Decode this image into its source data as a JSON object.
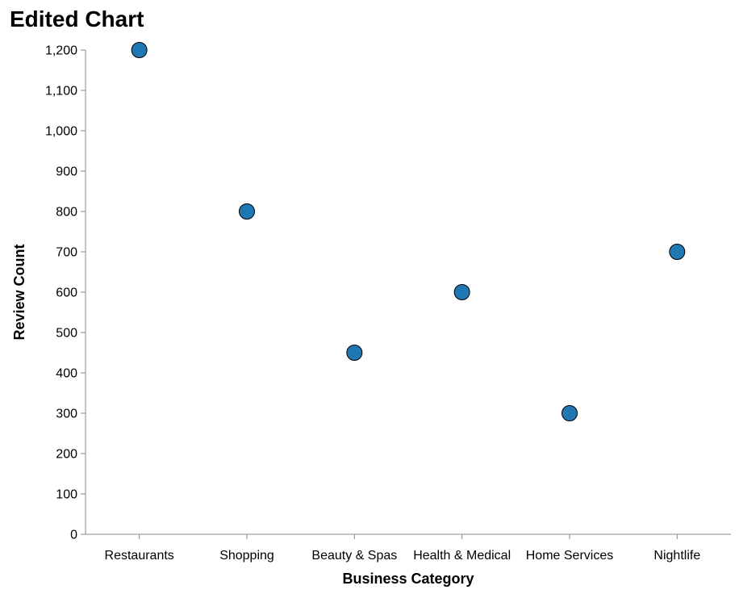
{
  "chart_data": {
    "type": "scatter",
    "title": "Edited Chart",
    "xlabel": "Business Category",
    "ylabel": "Review Count",
    "categories": [
      "Restaurants",
      "Shopping",
      "Beauty & Spas",
      "Health & Medical",
      "Home Services",
      "Nightlife"
    ],
    "values": [
      1200,
      800,
      450,
      600,
      300,
      700
    ],
    "ylim": [
      0,
      1200
    ],
    "yticks": [
      0,
      100,
      200,
      300,
      400,
      500,
      600,
      700,
      800,
      900,
      1000,
      1100,
      1200
    ],
    "ytick_labels": [
      "0",
      "100",
      "200",
      "300",
      "400",
      "500",
      "600",
      "700",
      "800",
      "900",
      "1,000",
      "1,100",
      "1,200"
    ],
    "grid": false,
    "point_color": "#1f77b4",
    "point_stroke": "#000000"
  }
}
